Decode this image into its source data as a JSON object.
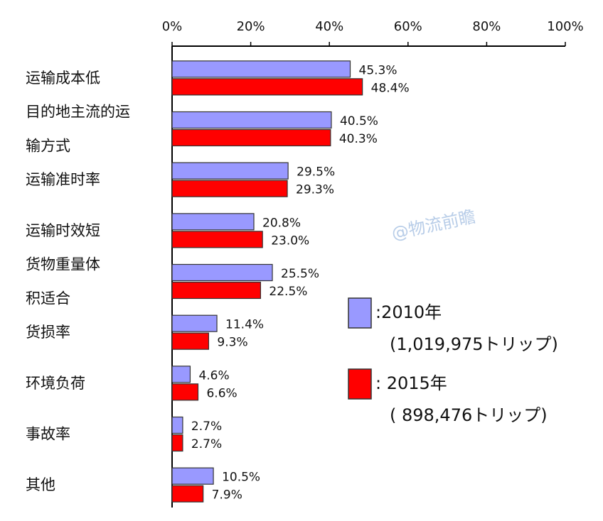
{
  "chart_data": {
    "type": "bar",
    "orientation": "horizontal",
    "categories": [
      [
        "运输成本低"
      ],
      [
        "目的地主流的运",
        "输方式"
      ],
      [
        "运输准时率"
      ],
      [
        "运输时效短"
      ],
      [
        "货物重量体",
        "积适合"
      ],
      [
        "货损率"
      ],
      [
        "环境负荷"
      ],
      [
        "事故率"
      ],
      [
        "其他"
      ]
    ],
    "series": [
      {
        "name": ":2010年",
        "note": "(1,019,975トリップ)",
        "color": "#9999ff",
        "values": [
          45.3,
          40.5,
          29.5,
          20.8,
          25.5,
          11.4,
          4.6,
          2.7,
          10.5
        ],
        "value_labels": [
          "45.3%",
          "40.5%",
          "29.5%",
          "20.8%",
          "25.5%",
          "11.4%",
          "4.6%",
          "2.7%",
          "10.5%"
        ]
      },
      {
        "name": ": 2015年",
        "note": "(  898,476トリップ)",
        "color": "#ff0000",
        "values": [
          48.4,
          40.3,
          29.3,
          23.0,
          22.5,
          9.3,
          6.6,
          2.7,
          7.9
        ],
        "value_labels": [
          "48.4%",
          "40.3%",
          "29.3%",
          "23.0%",
          "22.5%",
          "9.3%",
          "6.6%",
          "2.7%",
          "7.9%"
        ]
      }
    ],
    "xlim": [
      0,
      100
    ],
    "xticks": [
      {
        "value": 0,
        "label": "0%"
      },
      {
        "value": 20,
        "label": "20%"
      },
      {
        "value": 40,
        "label": "40%"
      },
      {
        "value": 60,
        "label": "60%"
      },
      {
        "value": 80,
        "label": "80%"
      },
      {
        "value": 100,
        "label": "100%"
      }
    ],
    "watermark": "@物流前瞻"
  }
}
